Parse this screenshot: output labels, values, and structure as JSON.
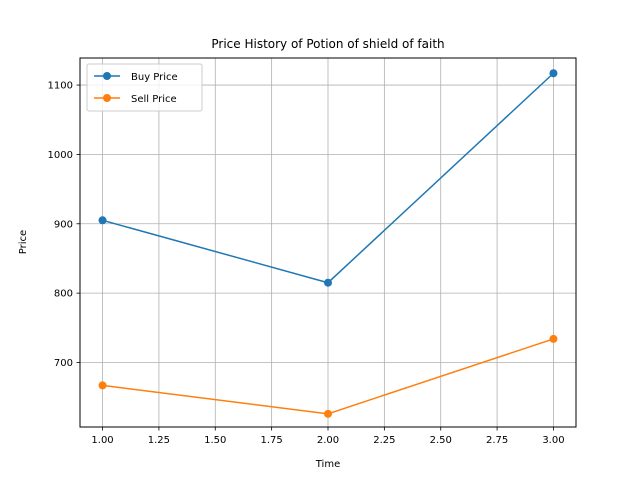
{
  "chart_data": {
    "type": "line",
    "title": "Price History of Potion of shield of faith",
    "xlabel": "Time",
    "ylabel": "Price",
    "x": [
      1.0,
      2.0,
      3.0
    ],
    "xlim": [
      0.9,
      3.1
    ],
    "ylim": [
      607,
      1139
    ],
    "xticks": [
      "1.00",
      "1.25",
      "1.50",
      "1.75",
      "2.00",
      "2.25",
      "2.50",
      "2.75",
      "3.00"
    ],
    "xtick_values": [
      1.0,
      1.25,
      1.5,
      1.75,
      2.0,
      2.25,
      2.5,
      2.75,
      3.0
    ],
    "yticks": [
      "700",
      "800",
      "900",
      "1000",
      "1100"
    ],
    "ytick_values": [
      700,
      800,
      900,
      1000,
      1100
    ],
    "grid": true,
    "legend_position": "top-left",
    "series": [
      {
        "name": "Buy Price",
        "color": "#1f77b4",
        "values": [
          905,
          815,
          1117
        ]
      },
      {
        "name": "Sell Price",
        "color": "#ff7f0e",
        "values": [
          667,
          626,
          734
        ]
      }
    ]
  }
}
